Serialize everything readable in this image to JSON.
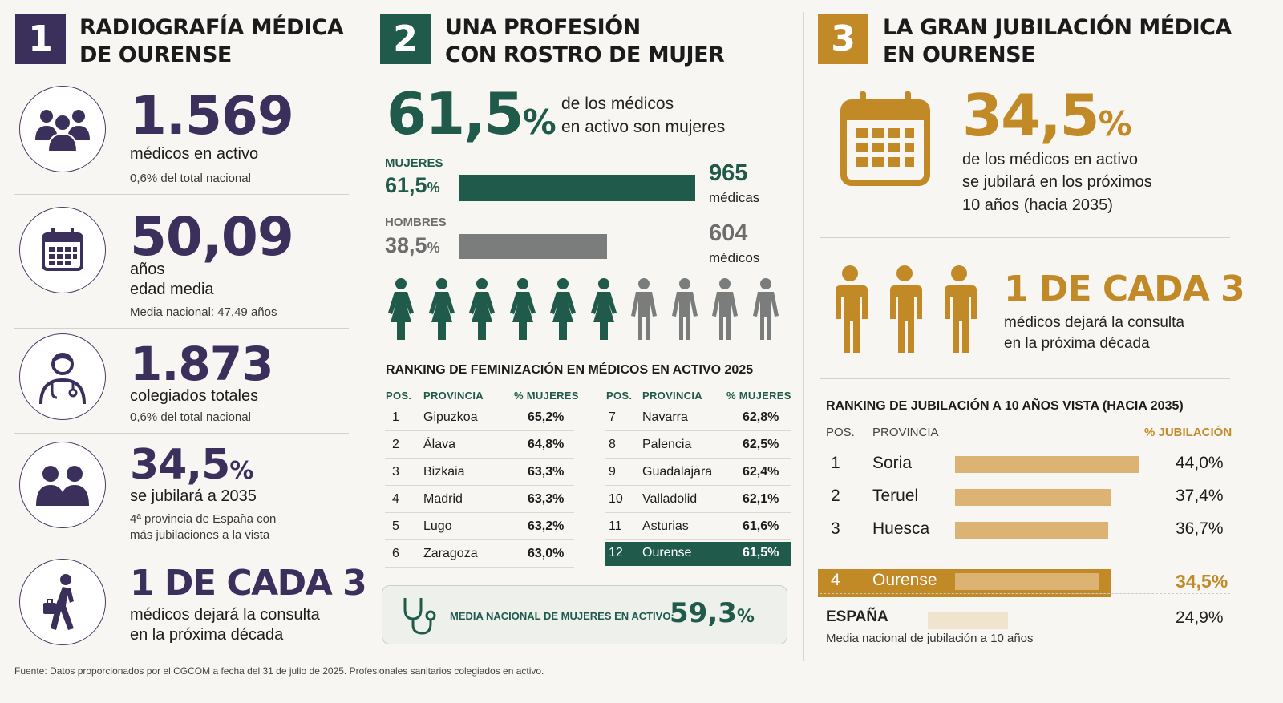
{
  "colors": {
    "purple": "#3b2f5c",
    "green": "#1f5a4a",
    "gray": "#7a7d7b",
    "gold": "#c28a27",
    "gold_light": "#ddb373"
  },
  "s1": {
    "num": "1",
    "title1": "RADIOGRAFÍA MÉDICA",
    "title2": "DE OURENSE",
    "items": [
      {
        "icon": "group-icon",
        "big": "1.569",
        "label": "médicos en activo",
        "small": "0,6% del total nacional"
      },
      {
        "icon": "calendar-icon",
        "big": "50,09",
        "label1": "años",
        "label2": "edad media",
        "small": "Media nacional: 47,49 años"
      },
      {
        "icon": "doctor-icon",
        "big": "1.873",
        "label": "colegiados totales",
        "small": "0,6% del total nacional"
      },
      {
        "icon": "people-icon",
        "big": "34,5",
        "pct": "%",
        "label": "se jubilará a 2035",
        "small1": "4ª provincia de España con",
        "small2": "más jubilaciones a la vista"
      },
      {
        "icon": "walking-person-icon",
        "big": "1 DE CADA 3",
        "label1": "médicos dejará la consulta",
        "label2": "en la próxima década"
      }
    ]
  },
  "s2": {
    "num": "2",
    "title1": "UNA PROFESIÓN",
    "title2": "CON ROSTRO DE MUJER",
    "headline_value": "61,5",
    "headline_pct": "%",
    "headline_text1": "de los médicos",
    "headline_text2": "en activo son mujeres",
    "ranking_title": "RANKING DE FEMINIZACIÓN EN MÉDICOS EN ACTIVO 2025",
    "col_pos": "POS.",
    "col_prov": "PROVINCIA",
    "col_pct": "% MUJERES",
    "footer_label": "MEDIA NACIONAL DE MUJERES EN ACTIVO:",
    "footer_value": "59,3",
    "footer_pct": "%"
  },
  "s3": {
    "num": "3",
    "title1": "LA GRAN JUBILACIÓN MÉDICA",
    "title2": "EN OURENSE",
    "headline_value": "34,5",
    "headline_pct": "%",
    "headline_text1": "de los médicos en activo",
    "headline_text2": "se jubilará en los próximos",
    "headline_text3": "10 años (hacia 2035)",
    "ratio": "1 DE CADA 3",
    "ratio_text1": "médicos dejará la consulta",
    "ratio_text2": "en la próxima década",
    "ranking_title": "RANKING DE JUBILACIÓN A 10 AÑOS VISTA (HACIA 2035)",
    "col_pos": "POS.",
    "col_prov": "PROVINCIA",
    "col_pct": "% JUBILACIÓN",
    "spain_label": "ESPAÑA",
    "spain_value": "24,9%",
    "spain_note": "Media nacional de jubilación a 10 años"
  },
  "source": "Fuente: Datos proporcionados por el CGCOM a fecha del 31 de julio de 2025. Profesionales sanitarios colegiados en activo.",
  "chart_data": [
    {
      "type": "bar",
      "series": [
        {
          "name": "MUJERES",
          "pct": "61,5",
          "count": "965",
          "unit": "médicas",
          "value": 965
        },
        {
          "name": "HOMBRES",
          "pct": "38,5",
          "count": "604",
          "unit": "médicos",
          "value": 604
        }
      ],
      "pictogram": {
        "women": 6,
        "men": 4
      }
    },
    {
      "type": "table",
      "title": "RANKING DE FEMINIZACIÓN EN MÉDICOS EN ACTIVO 2025",
      "rows": [
        {
          "pos": "1",
          "prov": "Gipuzkoa",
          "pct": "65,2%"
        },
        {
          "pos": "2",
          "prov": "Álava",
          "pct": "64,8%"
        },
        {
          "pos": "3",
          "prov": "Bizkaia",
          "pct": "63,3%"
        },
        {
          "pos": "4",
          "prov": "Madrid",
          "pct": "63,3%"
        },
        {
          "pos": "5",
          "prov": "Lugo",
          "pct": "63,2%"
        },
        {
          "pos": "6",
          "prov": "Zaragoza",
          "pct": "63,0%"
        },
        {
          "pos": "7",
          "prov": "Navarra",
          "pct": "62,8%"
        },
        {
          "pos": "8",
          "prov": "Palencia",
          "pct": "62,5%"
        },
        {
          "pos": "9",
          "prov": "Guadalajara",
          "pct": "62,4%"
        },
        {
          "pos": "10",
          "prov": "Valladolid",
          "pct": "62,1%"
        },
        {
          "pos": "11",
          "prov": "Asturias",
          "pct": "61,6%"
        },
        {
          "pos": "12",
          "prov": "Ourense",
          "pct": "61,5%",
          "highlight": true
        }
      ]
    },
    {
      "type": "bar",
      "title": "RANKING DE JUBILACIÓN A 10 AÑOS VISTA (HACIA 2035)",
      "rows": [
        {
          "pos": "1",
          "prov": "Soria",
          "label": "44,0%",
          "value": 44.0
        },
        {
          "pos": "2",
          "prov": "Teruel",
          "label": "37,4%",
          "value": 37.4
        },
        {
          "pos": "3",
          "prov": "Huesca",
          "label": "36,7%",
          "value": 36.7
        },
        {
          "pos": "4",
          "prov": "Ourense",
          "label": "34,5%",
          "value": 34.5,
          "highlight": true
        },
        {
          "pos": "",
          "prov": "ESPAÑA",
          "label": "24,9%",
          "value": 24.9
        }
      ]
    }
  ]
}
